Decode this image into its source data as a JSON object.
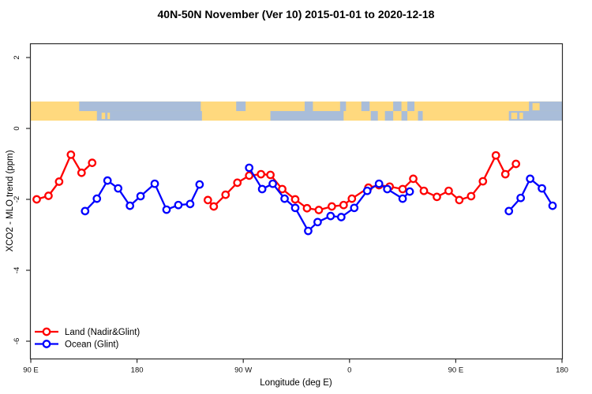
{
  "chart_data": {
    "type": "line",
    "title": "40N-50N November (Ver 10)   2015-01-01 to 2020-12-18",
    "xlabel": "Longitude (deg E)",
    "ylabel": "XCO2 - MLO trend (ppm)",
    "grid": false,
    "legend_position": "bottom-left",
    "x_axis": {
      "note": "longitude axis wraps eastward from 90E through 180, 90W, 0, 90E to 180; internal coords run 90..540",
      "range_deg": [
        90,
        540
      ],
      "ticks": [
        {
          "deg": 90,
          "label": "90 E"
        },
        {
          "deg": 180,
          "label": "180"
        },
        {
          "deg": 270,
          "label": "90 W"
        },
        {
          "deg": 360,
          "label": "0"
        },
        {
          "deg": 450,
          "label": "90 E"
        },
        {
          "deg": 540,
          "label": "180"
        }
      ]
    },
    "y_axis": {
      "range": [
        -6.5,
        2.4
      ],
      "ticks": [
        {
          "v": 2,
          "label": "2"
        },
        {
          "v": 0,
          "label": "0"
        },
        {
          "v": -2,
          "label": "-2"
        },
        {
          "v": -4,
          "label": "-4"
        },
        {
          "v": -6,
          "label": "-6"
        }
      ]
    },
    "legend": [
      {
        "label": "Land (Nadir&Glint)",
        "color": "#FF0000"
      },
      {
        "label": "Ocean (Glint)",
        "color": "#0000FF"
      }
    ],
    "series": [
      {
        "name": "Land (Nadir&Glint)",
        "color": "#FF0000",
        "marker": "open-circle",
        "segments": [
          [
            [
              95,
              -2.0
            ],
            [
              105,
              -1.9
            ],
            [
              114,
              -1.5
            ],
            [
              124,
              -0.74
            ],
            [
              133,
              -1.25
            ],
            [
              142,
              -0.97
            ]
          ],
          [
            [
              240,
              -2.02
            ],
            [
              245,
              -2.2
            ],
            [
              255,
              -1.87
            ],
            [
              265,
              -1.53
            ],
            [
              275,
              -1.33
            ],
            [
              285,
              -1.29
            ],
            [
              293,
              -1.31
            ],
            [
              303,
              -1.71
            ],
            [
              314,
              -2.0
            ],
            [
              324,
              -2.25
            ],
            [
              334,
              -2.3
            ],
            [
              345,
              -2.2
            ],
            [
              355,
              -2.16
            ],
            [
              362,
              -1.98
            ],
            [
              376,
              -1.67
            ],
            [
              385,
              -1.6
            ],
            [
              394,
              -1.64
            ],
            [
              405,
              -1.71
            ],
            [
              414,
              -1.42
            ],
            [
              423,
              -1.76
            ],
            [
              434,
              -1.93
            ],
            [
              444,
              -1.76
            ],
            [
              453,
              -2.02
            ],
            [
              463,
              -1.91
            ],
            [
              473,
              -1.49
            ],
            [
              484,
              -0.76
            ],
            [
              492,
              -1.29
            ],
            [
              501,
              -1.0
            ]
          ]
        ]
      },
      {
        "name": "Ocean (Glint)",
        "color": "#0000FF",
        "marker": "open-circle",
        "segments": [
          [
            [
              136,
              -2.33
            ],
            [
              146,
              -1.98
            ],
            [
              155,
              -1.47
            ],
            [
              164,
              -1.69
            ],
            [
              174,
              -2.18
            ],
            [
              183,
              -1.91
            ],
            [
              195,
              -1.56
            ],
            [
              205,
              -2.29
            ],
            [
              215,
              -2.16
            ],
            [
              225,
              -2.13
            ],
            [
              233,
              -1.58
            ]
          ],
          [
            [
              275,
              -1.11
            ],
            [
              286,
              -1.71
            ],
            [
              295,
              -1.56
            ],
            [
              305,
              -1.98
            ],
            [
              314,
              -2.24
            ],
            [
              325,
              -2.89
            ],
            [
              333,
              -2.64
            ],
            [
              344,
              -2.47
            ],
            [
              353,
              -2.5
            ],
            [
              364,
              -2.24
            ],
            [
              375,
              -1.76
            ],
            [
              385,
              -1.56
            ],
            [
              392,
              -1.71
            ],
            [
              405,
              -1.98
            ],
            [
              411,
              -1.78
            ]
          ],
          [
            [
              495,
              -2.33
            ],
            [
              505,
              -1.96
            ],
            [
              513,
              -1.42
            ],
            [
              523,
              -1.69
            ],
            [
              532,
              -2.18
            ]
          ]
        ]
      }
    ],
    "map_strip": {
      "description": "world-map band drawn across plot between ~0.22 and ~0.76 ppm",
      "y_top_ppm": 0.76,
      "y_bottom_ppm": 0.22,
      "land_color": "#FFD97E",
      "ocean_color": "#A9BDD9",
      "rows": {
        "top": {
          "ocean_deg": [
            [
              131,
              234
            ],
            [
              264,
              272
            ],
            [
              322,
              329
            ],
            [
              352,
              357
            ],
            [
              370,
              377
            ],
            [
              397,
              404
            ],
            [
              409,
              415
            ],
            [
              512,
              540
            ]
          ],
          "land_specks_deg": [
            [
              515,
              521
            ]
          ]
        },
        "bottom": {
          "ocean_deg": [
            [
              146,
              235
            ],
            [
              293,
              355
            ],
            [
              378,
              384
            ],
            [
              390,
              397
            ],
            [
              404,
              409
            ],
            [
              418,
              422
            ],
            [
              495,
              540
            ]
          ],
          "land_specks_deg": [
            [
              150,
              153
            ],
            [
              155,
              157
            ],
            [
              497,
              502
            ],
            [
              504,
              507
            ]
          ]
        }
      }
    }
  }
}
